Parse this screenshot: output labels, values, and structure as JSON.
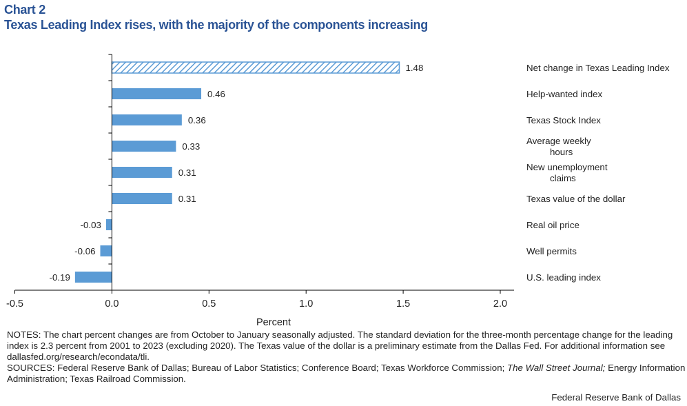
{
  "header": {
    "chart_number": "Chart 2",
    "title": "Texas Leading Index rises, with the majority of the components increasing"
  },
  "chart_data": {
    "type": "bar",
    "orientation": "horizontal",
    "categories": [
      "Net change in Texas Leading Index",
      "Help-wanted index",
      "Texas Stock Index",
      "Average weekly hours",
      "New unemployment claims",
      "Texas value of the dollar",
      "Real oil price",
      "Well permits",
      "U.S. leading index"
    ],
    "category_lines": [
      [
        "Net change in Texas Leading Index"
      ],
      [
        "Help-wanted index"
      ],
      [
        "Texas Stock Index"
      ],
      [
        "Average weekly",
        "hours"
      ],
      [
        "New unemployment",
        "claims"
      ],
      [
        "Texas value of the dollar"
      ],
      [
        "Real oil price"
      ],
      [
        "Well permits"
      ],
      [
        "U.S. leading index"
      ]
    ],
    "values": [
      1.48,
      0.46,
      0.36,
      0.33,
      0.31,
      0.31,
      -0.03,
      -0.06,
      -0.19
    ],
    "data_labels": [
      "1.48",
      "0.46",
      "0.36",
      "0.33",
      "0.31",
      "0.31",
      "-0.03",
      "-0.06",
      "-0.19"
    ],
    "hatched": [
      true,
      false,
      false,
      false,
      false,
      false,
      false,
      false,
      false
    ],
    "xlabel": "Percent",
    "xlim": [
      -0.5,
      2.0
    ],
    "xticks": [
      "-0.5",
      "0.0",
      "0.5",
      "1.0",
      "1.5",
      "2.0"
    ],
    "xtick_values": [
      -0.5,
      0,
      0.5,
      1,
      1.5,
      2
    ],
    "grid": false,
    "bar_color": "#5b9bd5"
  },
  "notes": {
    "notes_text": "NOTES: The chart percent changes are from October to January seasonally adjusted. The standard deviation for the three-month percentage change for the leading index is 2.3 percent from 2001 to 2023 (excluding 2020). The Texas value of the dollar is a preliminary estimate from the Dallas Fed. For additional information see dallasfed.org/research/econdata/tli.",
    "sources_prefix": "SOURCES: Federal Reserve Bank of Dallas; Bureau of Labor Statistics; Conference Board; Texas Workforce Commission; ",
    "sources_italic": "The Wall Street Journal;",
    "sources_suffix": " Energy Information Administration; Texas Railroad Commission."
  },
  "credit": "Federal Reserve Bank of Dallas"
}
